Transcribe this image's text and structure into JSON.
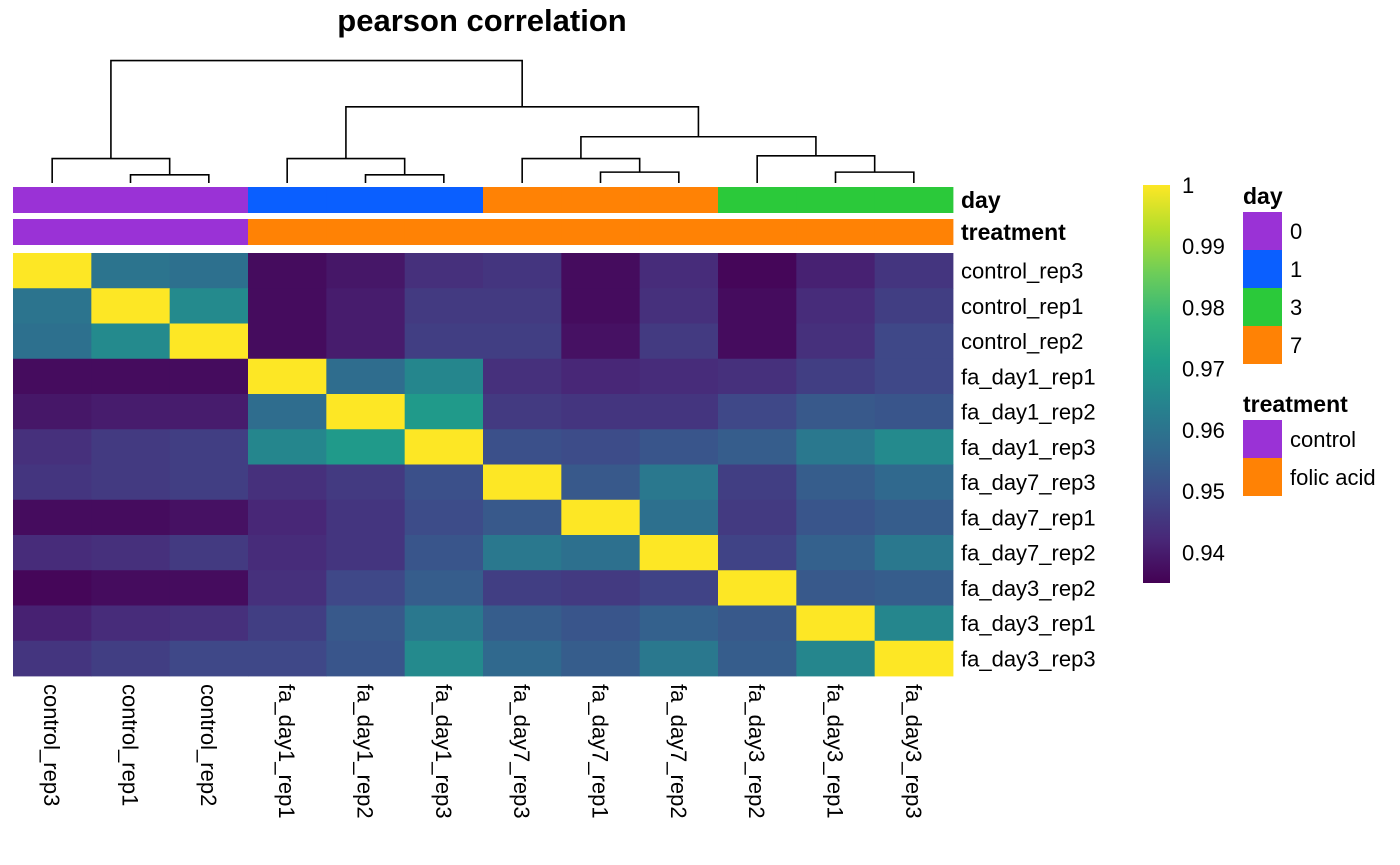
{
  "chart_data": {
    "type": "heatmap",
    "title": "pearson correlation",
    "samples": [
      "control_rep3",
      "control_rep1",
      "control_rep2",
      "fa_day1_rep1",
      "fa_day1_rep2",
      "fa_day1_rep3",
      "fa_day7_rep3",
      "fa_day7_rep1",
      "fa_day7_rep2",
      "fa_day3_rep2",
      "fa_day3_rep1",
      "fa_day3_rep3"
    ],
    "matrix": [
      [
        1.0,
        0.96,
        0.959,
        0.937,
        0.939,
        0.944,
        0.945,
        0.937,
        0.943,
        0.936,
        0.941,
        0.945
      ],
      [
        0.96,
        1.0,
        0.966,
        0.937,
        0.94,
        0.946,
        0.946,
        0.937,
        0.944,
        0.937,
        0.943,
        0.947
      ],
      [
        0.959,
        0.966,
        1.0,
        0.937,
        0.94,
        0.947,
        0.947,
        0.938,
        0.946,
        0.937,
        0.944,
        0.949
      ],
      [
        0.937,
        0.937,
        0.937,
        1.0,
        0.958,
        0.965,
        0.944,
        0.942,
        0.943,
        0.944,
        0.947,
        0.949
      ],
      [
        0.939,
        0.94,
        0.94,
        0.958,
        1.0,
        0.97,
        0.946,
        0.945,
        0.945,
        0.949,
        0.953,
        0.952
      ],
      [
        0.944,
        0.946,
        0.947,
        0.965,
        0.97,
        1.0,
        0.951,
        0.95,
        0.952,
        0.954,
        0.961,
        0.966
      ],
      [
        0.945,
        0.946,
        0.947,
        0.944,
        0.946,
        0.951,
        1.0,
        0.953,
        0.961,
        0.947,
        0.954,
        0.957
      ],
      [
        0.937,
        0.937,
        0.938,
        0.942,
        0.945,
        0.95,
        0.953,
        1.0,
        0.959,
        0.946,
        0.952,
        0.954
      ],
      [
        0.943,
        0.944,
        0.946,
        0.943,
        0.945,
        0.952,
        0.961,
        0.959,
        1.0,
        0.948,
        0.955,
        0.961
      ],
      [
        0.936,
        0.937,
        0.937,
        0.944,
        0.949,
        0.954,
        0.947,
        0.946,
        0.948,
        1.0,
        0.953,
        0.954
      ],
      [
        0.941,
        0.943,
        0.944,
        0.947,
        0.953,
        0.961,
        0.954,
        0.952,
        0.955,
        0.953,
        1.0,
        0.965
      ],
      [
        0.945,
        0.947,
        0.949,
        0.949,
        0.952,
        0.966,
        0.957,
        0.954,
        0.961,
        0.954,
        0.965,
        1.0
      ]
    ],
    "color_scale": {
      "min": 0.935,
      "max": 1,
      "ticks": [
        1,
        0.99,
        0.98,
        0.97,
        0.96,
        0.95,
        0.94
      ],
      "palette": "viridis",
      "stops": [
        "#440154",
        "#482878",
        "#3E4A89",
        "#31688E",
        "#26828E",
        "#1F9E89",
        "#35B779",
        "#6DCD59",
        "#B4DE2C",
        "#FDE725"
      ]
    },
    "annotations": [
      {
        "name": "day",
        "values": [
          "0",
          "0",
          "0",
          "1",
          "1",
          "1",
          "7",
          "7",
          "7",
          "3",
          "3",
          "3"
        ]
      },
      {
        "name": "treatment",
        "values": [
          "control",
          "control",
          "control",
          "folic acid",
          "folic acid",
          "folic acid",
          "folic acid",
          "folic acid",
          "folic acid",
          "folic acid",
          "folic acid",
          "folic acid"
        ]
      }
    ],
    "legends": [
      {
        "title": "day",
        "items": [
          {
            "label": "0",
            "color": "#9A32D6"
          },
          {
            "label": "1",
            "color": "#0A5FFF"
          },
          {
            "label": "3",
            "color": "#2BC93A"
          },
          {
            "label": "7",
            "color": "#FF8205"
          }
        ]
      },
      {
        "title": "treatment",
        "items": [
          {
            "label": "control",
            "color": "#9A32D6"
          },
          {
            "label": "folic acid",
            "color": "#FF8205"
          }
        ]
      }
    ],
    "dendrogram": {
      "merges": [
        [
          1,
          2,
          0.03
        ],
        [
          4,
          5,
          0.03
        ],
        [
          3,
          "n1",
          0.06
        ],
        [
          7,
          8,
          0.04
        ],
        [
          6,
          "n3",
          0.05
        ],
        [
          10,
          11,
          0.04
        ],
        [
          9,
          "n5",
          0.06
        ],
        [
          "n4",
          "n6",
          0.07
        ],
        [
          "n2",
          "n7",
          0.11
        ],
        [
          0,
          "n0",
          0.06
        ],
        [
          "n9",
          "n8",
          0.17
        ]
      ]
    }
  }
}
